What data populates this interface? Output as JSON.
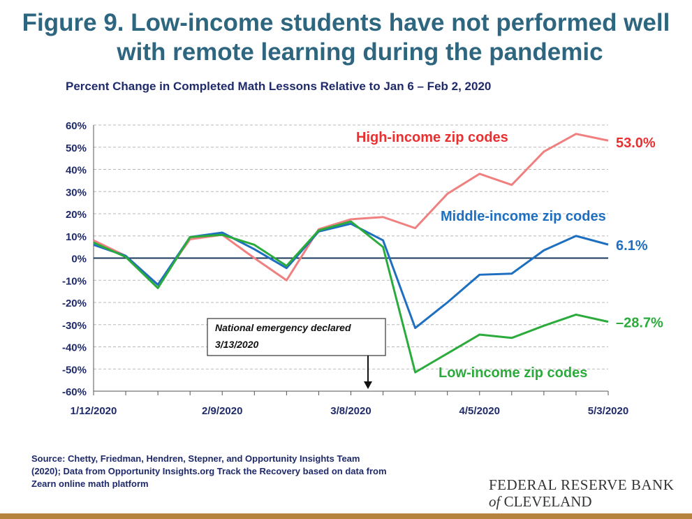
{
  "figure": {
    "title_line1": "Figure 9. Low-income students have not performed well",
    "title_line2": "with remote learning during the pandemic",
    "source_line1": "Source: Chetty, Friedman, Hendren, Stepner, and Opportunity Insights Team",
    "source_line2": "(2020); Data from Opportunity Insights.org Track the Recovery based on data from",
    "source_line3": "Zearn online math platform",
    "logo_line1": "FEDERAL RESERVE BANK",
    "logo_of": "of",
    "logo_city": "CLEVELAND"
  },
  "chart_data": {
    "type": "line",
    "title": "Percent Change in Completed Math Lessons Relative to Jan 6 – Feb 2, 2020",
    "x_tick_labels": [
      "1/12/2020",
      "2/9/2020",
      "3/8/2020",
      "4/5/2020",
      "5/3/2020"
    ],
    "x": [
      "1/12/2020",
      "1/19/2020",
      "1/26/2020",
      "2/2/2020",
      "2/9/2020",
      "2/16/2020",
      "2/23/2020",
      "3/1/2020",
      "3/8/2020",
      "3/15/2020",
      "3/22/2020",
      "3/29/2020",
      "4/5/2020",
      "4/12/2020",
      "4/19/2020",
      "4/26/2020",
      "5/3/2020"
    ],
    "y_ticks": [
      "-60%",
      "-50%",
      "-40%",
      "-30%",
      "-20%",
      "-10%",
      "0%",
      "10%",
      "20%",
      "30%",
      "40%",
      "50%",
      "60%"
    ],
    "ylim": [
      -60,
      60
    ],
    "grid": true,
    "series": [
      {
        "name": "High-income zip codes",
        "color": "#f08080",
        "values": [
          8,
          1,
          -12,
          8.5,
          10.5,
          0,
          -10,
          13,
          17.5,
          18.5,
          13.5,
          29,
          38,
          33,
          48,
          56,
          53.0
        ],
        "end_label": "53.0%"
      },
      {
        "name": "Middle-income zip codes",
        "color": "#1f6fc0",
        "values": [
          6,
          1,
          -12,
          9.5,
          11.5,
          4,
          -4.5,
          12,
          15.5,
          8,
          -31.5,
          -20,
          -7.5,
          -7,
          3.5,
          10,
          6.1
        ],
        "end_label": "6.1%"
      },
      {
        "name": "Low-income zip codes",
        "color": "#2bab3c",
        "values": [
          7,
          0.5,
          -13.5,
          9.5,
          10.5,
          6,
          -3.5,
          12.5,
          16.5,
          5,
          -51.5,
          -43,
          -34.5,
          -36,
          -30.5,
          -25.5,
          -28.7
        ],
        "end_label": "–28.7%"
      }
    ],
    "annotation": {
      "line1": "National emergency declared",
      "line2": "3/13/2020",
      "at_x": "3/13/2020"
    }
  }
}
